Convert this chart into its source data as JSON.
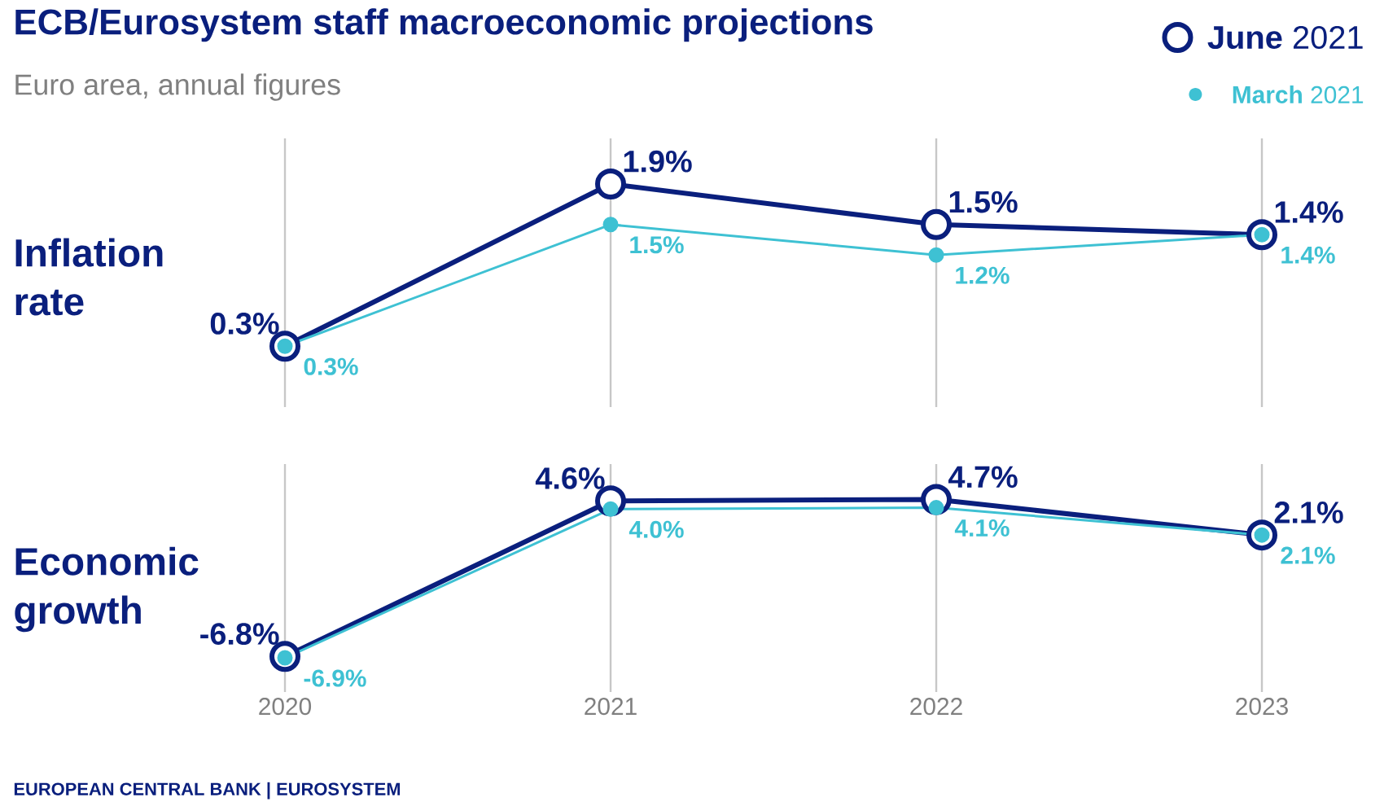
{
  "chart_data": [
    {
      "type": "line",
      "title": "ECB/Eurosystem staff macroeconomic projections",
      "subtitle": "Euro area, annual figures",
      "ylabel": "Inflation rate",
      "categories": [
        "2020",
        "2021",
        "2022",
        "2023"
      ],
      "ylim": [
        -0.3,
        2.35
      ],
      "grid": "x",
      "legend": "top right",
      "tick_labels": false,
      "marker": "circle",
      "series": [
        {
          "name": "**June** 2021",
          "color": "#0a1f7d",
          "values": [
            0.3,
            1.9,
            1.5,
            1.4
          ],
          "value_labels": [
            "0.3%",
            "1.9%",
            "1.5%",
            "1.4%"
          ]
        },
        {
          "name": "**March** 2021",
          "color": "#3ec1d3",
          "values": [
            0.3,
            1.5,
            1.2,
            1.4
          ],
          "value_labels": [
            "0.3%",
            "1.5%",
            "1.2%",
            "1.4%"
          ]
        }
      ]
    },
    {
      "type": "line",
      "ylabel": "Economic growth",
      "categories": [
        "2020",
        "2021",
        "2022",
        "2023"
      ],
      "ylim": [
        -9.4,
        7.3
      ],
      "grid": "x",
      "tick_labels": "x",
      "marker": "circle",
      "annotations": [
        "EUROPEAN CENTRAL BANK | EUROSYSTEM"
      ],
      "series": [
        {
          "color": "#0a1f7d",
          "values": [
            -6.8,
            4.6,
            4.7,
            2.1
          ],
          "value_labels": [
            "-6.8%",
            "4.6%",
            "4.7%",
            "2.1%"
          ]
        },
        {
          "color": "#3ec1d3",
          "values": [
            -6.9,
            4.0,
            4.1,
            2.1
          ],
          "value_labels": [
            "-6.9%",
            "4.0%",
            "4.1%",
            "2.1%"
          ]
        }
      ]
    }
  ]
}
